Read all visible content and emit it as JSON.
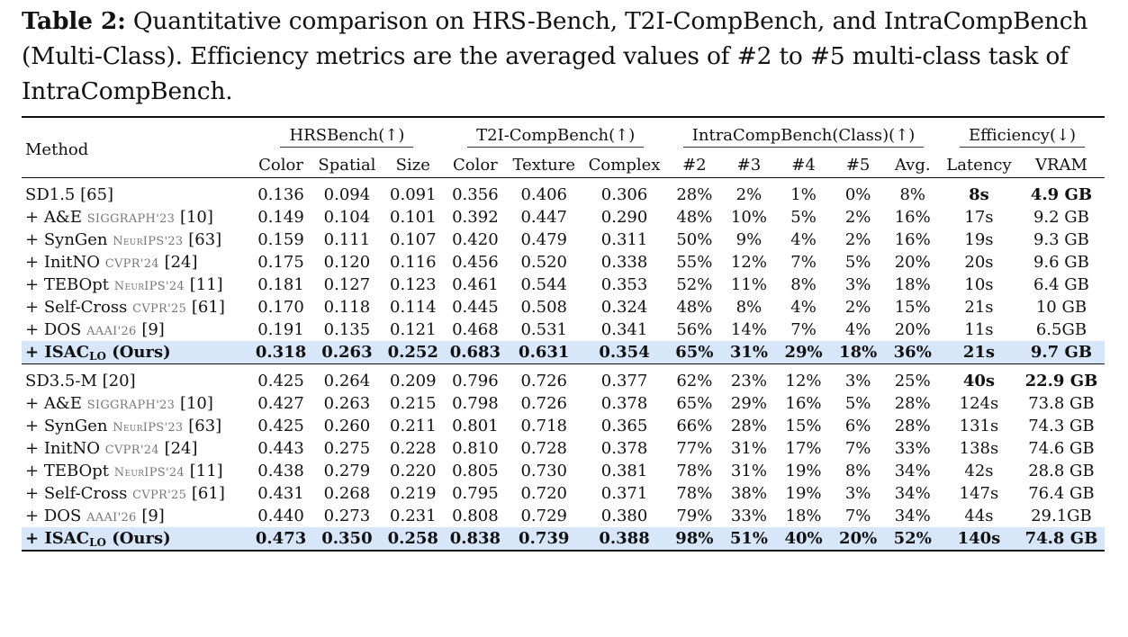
{
  "caption": {
    "label": "Table 2:",
    "text": "Quantitative comparison on HRS-Bench, T2I-CompBench, and IntraCompBench (Multi-Class). Efficiency metrics are the averaged values of #2 to #5 multi-class task of IntraCompBench."
  },
  "header": {
    "method": "Method",
    "groups": [
      "HRSBench(↑)",
      "T2I-CompBench(↑)",
      "IntraCompBench(Class)(↑)",
      "Efficiency(↓)"
    ],
    "columns": [
      "Color",
      "Spatial",
      "Size",
      "Color",
      "Texture",
      "Complex",
      "#2",
      "#3",
      "#4",
      "#5",
      "Avg.",
      "Latency",
      "VRAM"
    ]
  },
  "sections": [
    {
      "rows": [
        {
          "prefix": "",
          "name": "SD1.5",
          "venue": "",
          "ref": "[65]",
          "values": [
            "0.136",
            "0.094",
            "0.091",
            "0.356",
            "0.406",
            "0.306",
            "28%",
            "2%",
            "1%",
            "0%",
            "8%",
            "8s",
            "4.9 GB"
          ]
        },
        {
          "prefix": "+ ",
          "name": "A&E",
          "venue": "SIGGRAPH'23",
          "ref": "[10]",
          "values": [
            "0.149",
            "0.104",
            "0.101",
            "0.392",
            "0.447",
            "0.290",
            "48%",
            "10%",
            "5%",
            "2%",
            "16%",
            "17s",
            "9.2 GB"
          ]
        },
        {
          "prefix": "+ ",
          "name": "SynGen",
          "venue": "NeurIPS'23",
          "ref": "[63]",
          "values": [
            "0.159",
            "0.111",
            "0.107",
            "0.420",
            "0.479",
            "0.311",
            "50%",
            "9%",
            "4%",
            "2%",
            "16%",
            "19s",
            "9.3 GB"
          ]
        },
        {
          "prefix": "+ ",
          "name": "InitNO",
          "venue": "CVPR'24",
          "ref": "[24]",
          "values": [
            "0.175",
            "0.120",
            "0.116",
            "0.456",
            "0.520",
            "0.338",
            "55%",
            "12%",
            "7%",
            "5%",
            "20%",
            "20s",
            "9.6 GB"
          ]
        },
        {
          "prefix": "+ ",
          "name": "TEBOpt",
          "venue": "NeurIPS'24",
          "ref": "[11]",
          "values": [
            "0.181",
            "0.127",
            "0.123",
            "0.461",
            "0.544",
            "0.353",
            "52%",
            "11%",
            "8%",
            "3%",
            "18%",
            "10s",
            "6.4 GB"
          ]
        },
        {
          "prefix": "+ ",
          "name": "Self-Cross",
          "venue": "CVPR'25",
          "ref": "[61]",
          "values": [
            "0.170",
            "0.118",
            "0.114",
            "0.445",
            "0.508",
            "0.324",
            "48%",
            "8%",
            "4%",
            "2%",
            "15%",
            "21s",
            "10 GB"
          ]
        },
        {
          "prefix": "+ ",
          "name": "DOS",
          "venue": "AAAI'26",
          "ref": "[9]",
          "values": [
            "0.191",
            "0.135",
            "0.121",
            "0.468",
            "0.531",
            "0.341",
            "56%",
            "14%",
            "7%",
            "4%",
            "20%",
            "11s",
            "6.5GB"
          ]
        },
        {
          "prefix": "+ ",
          "name": "ISAC",
          "sub": "LO",
          "suffix": " (Ours)",
          "values": [
            "0.318",
            "0.263",
            "0.252",
            "0.683",
            "0.631",
            "0.354",
            "65%",
            "31%",
            "29%",
            "18%",
            "36%",
            "21s",
            "9.7 GB"
          ]
        }
      ]
    },
    {
      "rows": [
        {
          "prefix": "",
          "name": "SD3.5-M",
          "venue": "",
          "ref": "[20]",
          "values": [
            "0.425",
            "0.264",
            "0.209",
            "0.796",
            "0.726",
            "0.377",
            "62%",
            "23%",
            "12%",
            "3%",
            "25%",
            "40s",
            "22.9 GB"
          ]
        },
        {
          "prefix": "+ ",
          "name": "A&E",
          "venue": "SIGGRAPH'23",
          "ref": "[10]",
          "values": [
            "0.427",
            "0.263",
            "0.215",
            "0.798",
            "0.726",
            "0.378",
            "65%",
            "29%",
            "16%",
            "5%",
            "28%",
            "124s",
            "73.8 GB"
          ]
        },
        {
          "prefix": "+ ",
          "name": "SynGen",
          "venue": "NeurIPS'23",
          "ref": "[63]",
          "values": [
            "0.425",
            "0.260",
            "0.211",
            "0.801",
            "0.718",
            "0.365",
            "66%",
            "28%",
            "15%",
            "6%",
            "28%",
            "131s",
            "74.3 GB"
          ]
        },
        {
          "prefix": "+ ",
          "name": "InitNO",
          "venue": "CVPR'24",
          "ref": "[24]",
          "values": [
            "0.443",
            "0.275",
            "0.228",
            "0.810",
            "0.728",
            "0.378",
            "77%",
            "31%",
            "17%",
            "7%",
            "33%",
            "138s",
            "74.6 GB"
          ]
        },
        {
          "prefix": "+ ",
          "name": "TEBOpt",
          "venue": "NeurIPS'24",
          "ref": "[11]",
          "values": [
            "0.438",
            "0.279",
            "0.220",
            "0.805",
            "0.730",
            "0.381",
            "78%",
            "31%",
            "19%",
            "8%",
            "34%",
            "42s",
            "28.8 GB"
          ]
        },
        {
          "prefix": "+ ",
          "name": "Self-Cross",
          "venue": "CVPR'25",
          "ref": "[61]",
          "values": [
            "0.431",
            "0.268",
            "0.219",
            "0.795",
            "0.720",
            "0.371",
            "78%",
            "38%",
            "19%",
            "3%",
            "34%",
            "147s",
            "76.4 GB"
          ]
        },
        {
          "prefix": "+ ",
          "name": "DOS",
          "venue": "AAAI'26",
          "ref": "[9]",
          "values": [
            "0.440",
            "0.273",
            "0.231",
            "0.808",
            "0.729",
            "0.380",
            "79%",
            "33%",
            "18%",
            "7%",
            "34%",
            "44s",
            "29.1GB"
          ]
        },
        {
          "prefix": "+ ",
          "name": "ISAC",
          "sub": "LO",
          "suffix": " (Ours)",
          "values": [
            "0.473",
            "0.350",
            "0.258",
            "0.838",
            "0.739",
            "0.388",
            "98%",
            "51%",
            "40%",
            "20%",
            "52%",
            "140s",
            "74.8 GB"
          ]
        }
      ]
    }
  ],
  "colors": {
    "highlight_row": "#d8e6fa",
    "rule": "#111111",
    "venue": "#777777"
  }
}
